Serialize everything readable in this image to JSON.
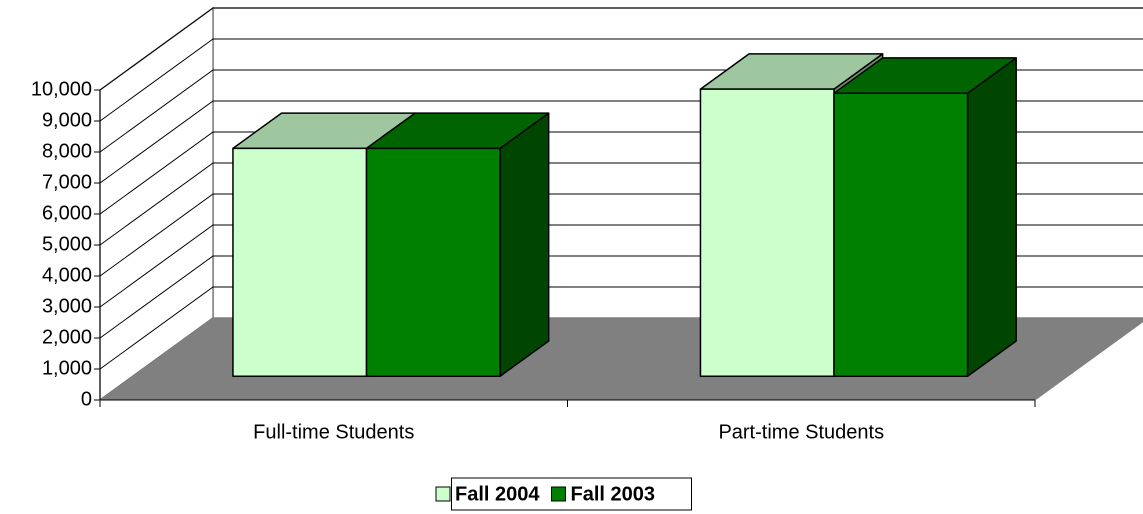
{
  "chart_data": {
    "type": "bar3d",
    "categories": [
      "Full-time Students",
      "Part-time Students"
    ],
    "series": [
      {
        "name": "Fall 2004",
        "color": "#ccffcc",
        "values": [
          7350,
          9260
        ]
      },
      {
        "name": "Fall 2003",
        "color": "#008000",
        "values": [
          7350,
          9130
        ]
      }
    ],
    "ylim": [
      0,
      10000
    ],
    "yticks": [
      0,
      {
        "value": 1000,
        "label": "1,000"
      },
      {
        "value": 2000,
        "label": "2,000"
      },
      {
        "value": 3000,
        "label": "3,000"
      },
      {
        "value": 4000,
        "label": "4,000"
      },
      {
        "value": 5000,
        "label": "5,000"
      },
      {
        "value": 6000,
        "label": "6,000"
      },
      {
        "value": 7000,
        "label": "7,000"
      },
      {
        "value": 8000,
        "label": "8,000"
      },
      {
        "value": 9000,
        "label": "9,000"
      },
      {
        "value": 10000,
        "label": "10,000"
      }
    ],
    "grid": true,
    "legend": "bottom"
  }
}
